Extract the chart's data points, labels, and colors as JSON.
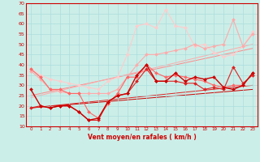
{
  "xlabel": "Vent moyen/en rafales ( km/h )",
  "xlim": [
    -0.5,
    23.5
  ],
  "ylim": [
    10,
    70
  ],
  "yticks": [
    10,
    15,
    20,
    25,
    30,
    35,
    40,
    45,
    50,
    55,
    60,
    65,
    70
  ],
  "xticks": [
    0,
    1,
    2,
    3,
    4,
    5,
    6,
    7,
    8,
    9,
    10,
    11,
    12,
    13,
    14,
    15,
    16,
    17,
    18,
    19,
    20,
    21,
    22,
    23
  ],
  "background_color": "#cceee8",
  "grid_color": "#aadddd",
  "line_dark1": {
    "y": [
      28,
      20,
      19,
      20,
      20,
      17,
      13,
      14,
      22,
      25,
      26,
      35,
      40,
      32,
      32,
      36,
      32,
      34,
      33,
      34,
      29,
      28,
      30,
      36
    ],
    "color": "#cc0000",
    "lw": 1.0
  },
  "line_dark2": {
    "y": [
      19,
      20,
      19,
      20,
      20,
      17,
      13,
      13,
      22,
      25,
      26,
      32,
      38,
      32,
      32,
      32,
      31,
      31,
      28,
      29,
      28,
      39,
      31,
      35
    ],
    "color": "#dd2222",
    "lw": 0.8
  },
  "line_med1": {
    "y": [
      38,
      34,
      28,
      28,
      26,
      26,
      17,
      14,
      21,
      26,
      34,
      34,
      40,
      36,
      34,
      35,
      34,
      33,
      32,
      30,
      29,
      30,
      30,
      36
    ],
    "color": "#ff6666",
    "lw": 0.8
  },
  "line_light1": {
    "y": [
      37,
      33,
      28,
      27,
      26,
      26,
      26,
      26,
      26,
      28,
      34,
      40,
      45,
      45,
      46,
      47,
      48,
      50,
      48,
      49,
      50,
      62,
      49,
      55
    ],
    "color": "#ffaaaa",
    "lw": 0.8
  },
  "line_light2": {
    "y": [
      38,
      35,
      33,
      32,
      31,
      30,
      29,
      28,
      32,
      34,
      45,
      59,
      60,
      58,
      67,
      59,
      58,
      49,
      50,
      46,
      44,
      45,
      49,
      56
    ],
    "color": "#ffcccc",
    "lw": 0.8
  },
  "trend_lines": [
    {
      "x0": 0,
      "x1": 23,
      "y0": 19,
      "y1": 28,
      "color": "#cc0000",
      "lw": 0.7
    },
    {
      "x0": 0,
      "x1": 23,
      "y0": 19,
      "y1": 30,
      "color": "#dd2222",
      "lw": 0.7
    },
    {
      "x0": 0,
      "x1": 23,
      "y0": 25,
      "y1": 48,
      "color": "#ff8888",
      "lw": 0.7
    },
    {
      "x0": 0,
      "x1": 23,
      "y0": 24,
      "y1": 50,
      "color": "#ffaaaa",
      "lw": 0.7
    }
  ]
}
